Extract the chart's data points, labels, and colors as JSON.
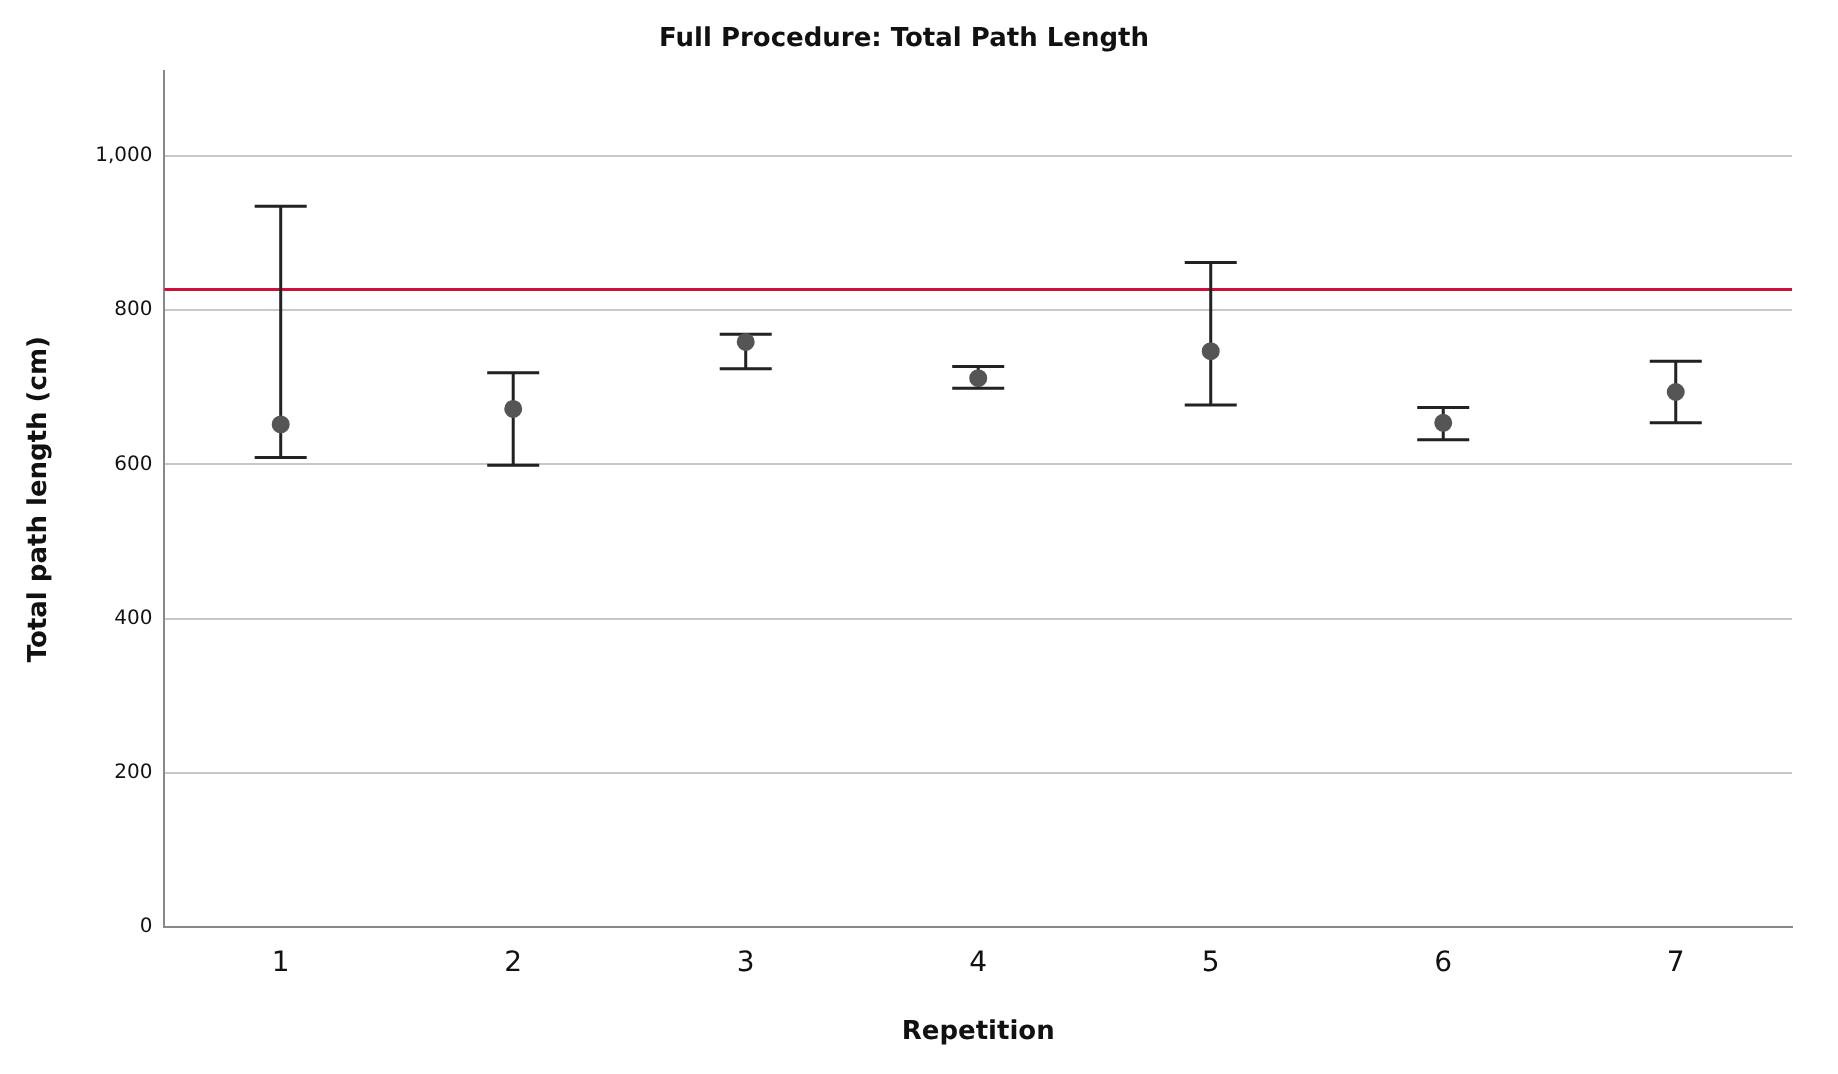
{
  "chart_data": {
    "type": "scatter",
    "title": "Full Procedure: Total Path Length",
    "xlabel": "Repetition",
    "ylabel": "Total path length (cm)",
    "categories": [
      "1",
      "2",
      "3",
      "4",
      "5",
      "6",
      "7"
    ],
    "series": [
      {
        "color": "#555555",
        "values": [
          652,
          672,
          759,
          712,
          747,
          654,
          694
        ],
        "errors": [
          [
            609,
            935
          ],
          [
            599,
            719
          ],
          [
            724,
            769
          ],
          [
            699,
            727
          ],
          [
            677,
            862
          ],
          [
            632,
            674
          ],
          [
            654,
            734
          ]
        ]
      }
    ],
    "ylim": [
      0,
      1110
    ],
    "yticks": [
      0,
      200,
      400,
      600,
      800,
      {
        "value": 1000,
        "label": "1,000"
      }
    ],
    "ref_lines": [
      {
        "axis": "y",
        "value": 827,
        "color": "#d0103a"
      }
    ],
    "grid": "y",
    "legend": false,
    "marker": "circle"
  }
}
